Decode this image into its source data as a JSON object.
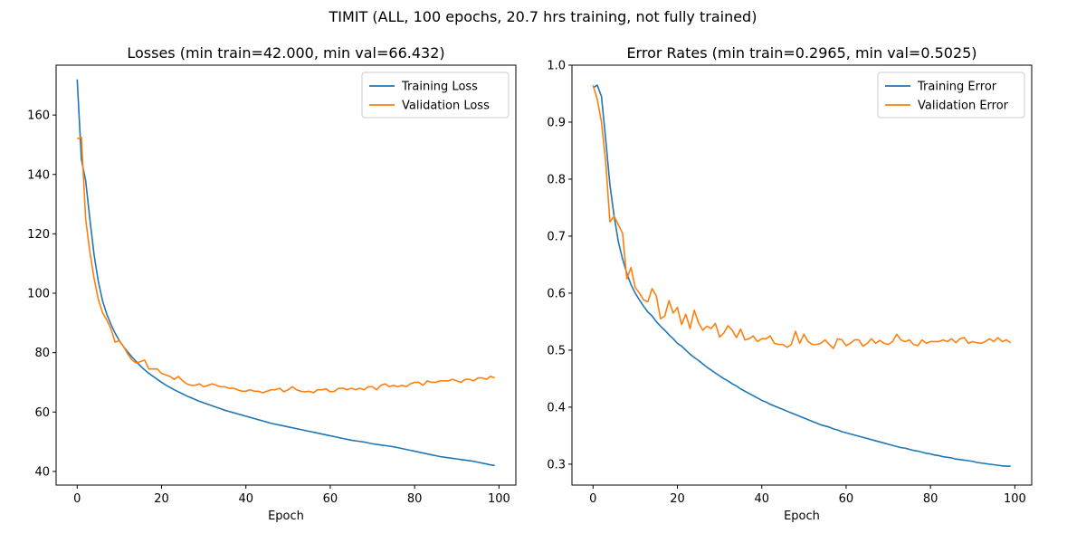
{
  "figure": {
    "suptitle": "TIMIT (ALL, 100 epochs, 20.7 hrs training, not fully trained)"
  },
  "colors": {
    "training": "#1f77b4",
    "validation": "#ff7f0e"
  },
  "chart_data": [
    {
      "type": "line",
      "title": "Losses (min train=42.000, min val=66.432)",
      "xlabel": "Epoch",
      "ylabel": "",
      "xlim": [
        -5,
        104
      ],
      "ylim": [
        35.4,
        176.8
      ],
      "xticks": [
        0,
        20,
        40,
        60,
        80,
        100
      ],
      "yticks": [
        40,
        60,
        80,
        100,
        120,
        140,
        160
      ],
      "legend": "upper right",
      "grid": false,
      "x": [
        0,
        1,
        2,
        3,
        4,
        5,
        6,
        7,
        8,
        9,
        10,
        11,
        12,
        13,
        14,
        15,
        16,
        17,
        18,
        19,
        20,
        21,
        22,
        23,
        24,
        25,
        26,
        27,
        28,
        29,
        30,
        31,
        32,
        33,
        34,
        35,
        36,
        37,
        38,
        39,
        40,
        41,
        42,
        43,
        44,
        45,
        46,
        47,
        48,
        49,
        50,
        51,
        52,
        53,
        54,
        55,
        56,
        57,
        58,
        59,
        60,
        61,
        62,
        63,
        64,
        65,
        66,
        67,
        68,
        69,
        70,
        71,
        72,
        73,
        74,
        75,
        76,
        77,
        78,
        79,
        80,
        81,
        82,
        83,
        84,
        85,
        86,
        87,
        88,
        89,
        90,
        91,
        92,
        93,
        94,
        95,
        96,
        97,
        98,
        99
      ],
      "series": [
        {
          "name": "Training Loss",
          "values": [
            172.0,
            145.0,
            138.0,
            125.0,
            113.0,
            104.0,
            97.5,
            93.0,
            89.5,
            86.5,
            84.0,
            82.0,
            80.2,
            78.5,
            77.0,
            75.5,
            74.2,
            73.0,
            72.0,
            71.0,
            70.0,
            69.1,
            68.3,
            67.5,
            66.8,
            66.1,
            65.4,
            64.8,
            64.2,
            63.6,
            63.1,
            62.6,
            62.1,
            61.6,
            61.1,
            60.6,
            60.2,
            59.8,
            59.4,
            59.0,
            58.6,
            58.2,
            57.8,
            57.4,
            57.0,
            56.6,
            56.2,
            55.9,
            55.6,
            55.3,
            55.0,
            54.7,
            54.4,
            54.1,
            53.8,
            53.5,
            53.2,
            52.9,
            52.6,
            52.3,
            52.0,
            51.7,
            51.4,
            51.1,
            50.8,
            50.5,
            50.3,
            50.1,
            49.9,
            49.6,
            49.3,
            49.1,
            48.9,
            48.7,
            48.5,
            48.3,
            48.0,
            47.7,
            47.4,
            47.1,
            46.8,
            46.5,
            46.2,
            45.9,
            45.6,
            45.3,
            45.0,
            44.8,
            44.6,
            44.4,
            44.2,
            44.0,
            43.8,
            43.6,
            43.4,
            43.1,
            42.8,
            42.5,
            42.2,
            42.0
          ]
        },
        {
          "name": "Validation Loss",
          "values": [
            152.0,
            152.5,
            125.0,
            114.0,
            105.0,
            98.0,
            93.5,
            91.0,
            88.0,
            83.5,
            84.0,
            82.0,
            79.5,
            77.5,
            76.5,
            77.0,
            77.5,
            74.5,
            74.5,
            74.5,
            73.0,
            72.5,
            72.0,
            71.0,
            72.0,
            70.5,
            69.5,
            69.0,
            69.0,
            69.5,
            68.5,
            69.0,
            69.5,
            69.0,
            68.5,
            68.5,
            68.0,
            68.0,
            67.5,
            67.0,
            67.0,
            67.5,
            67.0,
            67.0,
            66.5,
            67.0,
            67.5,
            67.5,
            68.0,
            66.8,
            67.5,
            68.5,
            67.5,
            67.0,
            66.8,
            67.0,
            66.5,
            67.5,
            67.5,
            67.8,
            66.8,
            67.0,
            68.0,
            68.0,
            67.5,
            68.0,
            67.5,
            68.0,
            67.5,
            68.5,
            68.5,
            67.5,
            69.0,
            69.5,
            68.5,
            69.0,
            68.5,
            69.0,
            68.5,
            69.5,
            70.0,
            70.0,
            69.0,
            70.5,
            70.0,
            70.0,
            70.5,
            70.5,
            70.5,
            71.0,
            70.5,
            70.0,
            71.0,
            71.0,
            70.5,
            71.5,
            71.5,
            71.0,
            72.0,
            71.5
          ]
        }
      ]
    },
    {
      "type": "line",
      "title": "Error Rates (min train=0.2965, min val=0.5025)",
      "xlabel": "Epoch",
      "ylabel": "",
      "xlim": [
        -5,
        104
      ],
      "ylim": [
        0.2633,
        1.0
      ],
      "xticks": [
        0,
        20,
        40,
        60,
        80,
        100
      ],
      "yticks": [
        0.3,
        0.4,
        0.5,
        0.6,
        0.7,
        0.8,
        0.9,
        1.0
      ],
      "legend": "upper right",
      "grid": false,
      "x": [
        0,
        1,
        2,
        3,
        4,
        5,
        6,
        7,
        8,
        9,
        10,
        11,
        12,
        13,
        14,
        15,
        16,
        17,
        18,
        19,
        20,
        21,
        22,
        23,
        24,
        25,
        26,
        27,
        28,
        29,
        30,
        31,
        32,
        33,
        34,
        35,
        36,
        37,
        38,
        39,
        40,
        41,
        42,
        43,
        44,
        45,
        46,
        47,
        48,
        49,
        50,
        51,
        52,
        53,
        54,
        55,
        56,
        57,
        58,
        59,
        60,
        61,
        62,
        63,
        64,
        65,
        66,
        67,
        68,
        69,
        70,
        71,
        72,
        73,
        74,
        75,
        76,
        77,
        78,
        79,
        80,
        81,
        82,
        83,
        84,
        85,
        86,
        87,
        88,
        89,
        90,
        91,
        92,
        93,
        94,
        95,
        96,
        97,
        98,
        99
      ],
      "series": [
        {
          "name": "Training Error",
          "values": [
            0.96,
            0.965,
            0.945,
            0.87,
            0.79,
            0.735,
            0.69,
            0.66,
            0.635,
            0.615,
            0.6,
            0.588,
            0.577,
            0.567,
            0.56,
            0.55,
            0.542,
            0.535,
            0.527,
            0.52,
            0.512,
            0.507,
            0.5,
            0.493,
            0.487,
            0.482,
            0.476,
            0.47,
            0.465,
            0.46,
            0.455,
            0.45,
            0.446,
            0.441,
            0.437,
            0.432,
            0.428,
            0.424,
            0.42,
            0.416,
            0.412,
            0.409,
            0.405,
            0.402,
            0.399,
            0.396,
            0.393,
            0.39,
            0.387,
            0.384,
            0.381,
            0.378,
            0.375,
            0.372,
            0.369,
            0.367,
            0.365,
            0.362,
            0.36,
            0.357,
            0.355,
            0.353,
            0.351,
            0.349,
            0.347,
            0.345,
            0.343,
            0.341,
            0.339,
            0.337,
            0.335,
            0.333,
            0.331,
            0.329,
            0.328,
            0.326,
            0.324,
            0.323,
            0.321,
            0.319,
            0.318,
            0.316,
            0.315,
            0.313,
            0.312,
            0.311,
            0.309,
            0.308,
            0.307,
            0.306,
            0.305,
            0.303,
            0.302,
            0.301,
            0.3,
            0.299,
            0.298,
            0.297,
            0.2965,
            0.2965
          ]
        },
        {
          "name": "Validation Error",
          "values": [
            0.965,
            0.94,
            0.9,
            0.83,
            0.725,
            0.735,
            0.72,
            0.705,
            0.625,
            0.645,
            0.61,
            0.6,
            0.588,
            0.585,
            0.608,
            0.595,
            0.555,
            0.56,
            0.587,
            0.565,
            0.575,
            0.545,
            0.563,
            0.538,
            0.57,
            0.548,
            0.535,
            0.542,
            0.538,
            0.547,
            0.523,
            0.53,
            0.543,
            0.535,
            0.522,
            0.537,
            0.518,
            0.52,
            0.525,
            0.515,
            0.52,
            0.52,
            0.525,
            0.512,
            0.51,
            0.51,
            0.505,
            0.51,
            0.533,
            0.512,
            0.528,
            0.515,
            0.51,
            0.51,
            0.512,
            0.518,
            0.51,
            0.503,
            0.52,
            0.518,
            0.508,
            0.512,
            0.518,
            0.518,
            0.507,
            0.512,
            0.52,
            0.512,
            0.517,
            0.512,
            0.51,
            0.515,
            0.528,
            0.518,
            0.515,
            0.518,
            0.51,
            0.508,
            0.518,
            0.512,
            0.515,
            0.515,
            0.515,
            0.518,
            0.515,
            0.52,
            0.513,
            0.52,
            0.522,
            0.512,
            0.515,
            0.513,
            0.512,
            0.515,
            0.52,
            0.515,
            0.522,
            0.515,
            0.518,
            0.513
          ]
        }
      ]
    }
  ]
}
